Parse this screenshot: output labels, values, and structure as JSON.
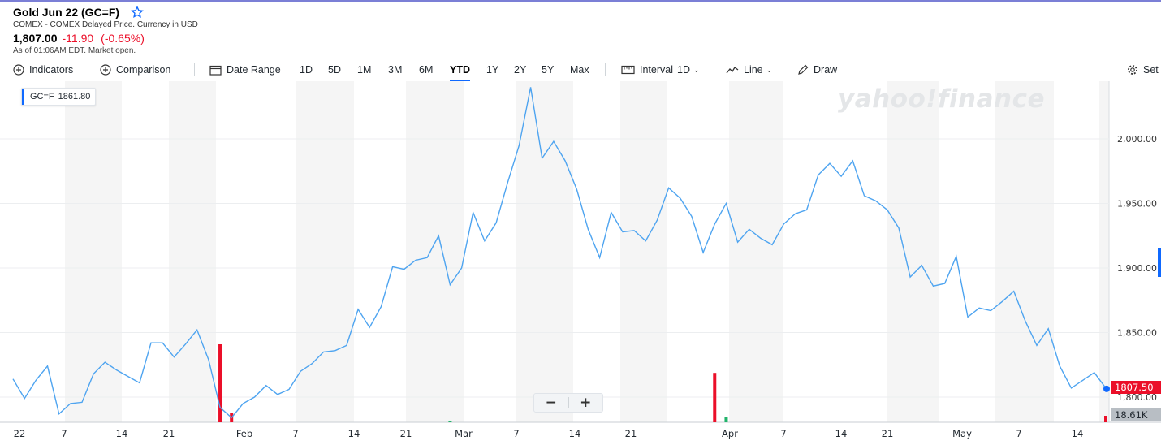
{
  "header": {
    "title": "Gold Jun 22 (GC=F)",
    "subtitle": "COMEX - COMEX Delayed Price. Currency in USD",
    "price": "1,807.00",
    "change": "-11.90",
    "change_pct": "(-0.65%)",
    "as_of": "As of 01:06AM EDT. Market open."
  },
  "toolbar": {
    "indicators": "Indicators",
    "comparison": "Comparison",
    "date_range": "Date Range",
    "ranges": [
      "1D",
      "5D",
      "1M",
      "3M",
      "6M",
      "YTD",
      "1Y",
      "2Y",
      "5Y",
      "Max"
    ],
    "active_range": "YTD",
    "interval_label": "Interval",
    "interval_value": "1D",
    "chart_type": "Line",
    "draw": "Draw",
    "settings": "Set"
  },
  "legend": {
    "symbol": "GC=F",
    "value": "1861.80"
  },
  "watermark": "yahoo!finance",
  "price_tag": "1807.50",
  "volume_tag": "18.61K",
  "colors": {
    "line": "#4ea4f0",
    "negative": "#eb0f29",
    "positive": "#21b36a",
    "band": "#f5f5f5"
  },
  "chart_data": {
    "type": "line",
    "y_ticks": [
      "2,000.00",
      "1,950.00",
      "1,900.00",
      "1,850.00",
      "1,800.00"
    ],
    "y_tick_values": [
      2000,
      1950,
      1900,
      1850,
      1800
    ],
    "ylim": [
      1780,
      2043
    ],
    "x_ticks": [
      "22",
      "7",
      "14",
      "21",
      "Feb",
      "7",
      "14",
      "21",
      "Mar",
      "7",
      "14",
      "21",
      "Apr",
      "7",
      "14",
      "21",
      "May",
      "7",
      "14"
    ],
    "series": [
      {
        "values": [
          1814,
          1799,
          1813,
          1824,
          1787,
          1795,
          1796,
          1818,
          1827,
          1821,
          1816,
          1811,
          1842,
          1842,
          1831,
          1841,
          1852,
          1829,
          1792,
          1784,
          1795,
          1800,
          1809,
          1802,
          1806,
          1820,
          1826,
          1835,
          1836,
          1840,
          1868,
          1854,
          1870,
          1901,
          1899,
          1906,
          1908,
          1925,
          1887,
          1900,
          1943,
          1921,
          1935,
          1966,
          1995,
          2040,
          1985,
          1998,
          1983,
          1961,
          1930,
          1908,
          1943,
          1928,
          1929,
          1921,
          1937,
          1962,
          1954,
          1940,
          1912,
          1934,
          1950,
          1920,
          1930,
          1923,
          1918,
          1934,
          1942,
          1945,
          1972,
          1981,
          1971,
          1983,
          1956,
          1952,
          1945,
          1931,
          1893,
          1902,
          1886,
          1888,
          1909,
          1862,
          1869,
          1867,
          1874,
          1882,
          1859,
          1840,
          1853,
          1824,
          1807,
          1813,
          1819,
          1807
        ]
      }
    ],
    "volume": [
      {
        "index": 18,
        "level": 0.6,
        "dir": "down"
      },
      {
        "index": 19,
        "level": 0.07,
        "dir": "down"
      },
      {
        "index": 38,
        "level": 0.01,
        "dir": "up"
      },
      {
        "index": 61,
        "level": 0.38,
        "dir": "down"
      },
      {
        "index": 62,
        "level": 0.04,
        "dir": "up"
      },
      {
        "index": 95,
        "level": 0.05,
        "dir": "down"
      }
    ]
  }
}
